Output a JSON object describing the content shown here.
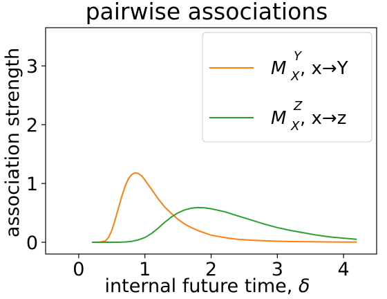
{
  "chart_data": {
    "type": "line",
    "title": "pairwise associations",
    "xlabel": "internal future time, ",
    "xlabel_symbol": "δ",
    "ylabel": "association strength",
    "xlim": [
      -0.5,
      4.5
    ],
    "ylim": [
      -0.2,
      3.65
    ],
    "xticks": [
      0,
      1,
      2,
      3,
      4
    ],
    "yticks": [
      0,
      1,
      2,
      3
    ],
    "grid": false,
    "legend_position": "top-right",
    "series": [
      {
        "name_main": "M",
        "name_sup": "Y",
        "name_sub": "X",
        "name_suffix": ", x→Y",
        "color": "#ff7f0e",
        "x": [
          0.2,
          0.3,
          0.4,
          0.45,
          0.5,
          0.55,
          0.6,
          0.65,
          0.7,
          0.75,
          0.8,
          0.85,
          0.9,
          0.95,
          1.0,
          1.05,
          1.1,
          1.15,
          1.2,
          1.25,
          1.3,
          1.4,
          1.5,
          1.6,
          1.7,
          1.8,
          1.9,
          2.0,
          2.2,
          2.4,
          2.6,
          2.8,
          3.0,
          3.2,
          3.5,
          3.8,
          4.2
        ],
        "y": [
          0.0,
          0.0,
          0.02,
          0.08,
          0.2,
          0.38,
          0.58,
          0.78,
          0.95,
          1.08,
          1.15,
          1.18,
          1.17,
          1.13,
          1.06,
          0.98,
          0.9,
          0.82,
          0.74,
          0.67,
          0.6,
          0.49,
          0.39,
          0.31,
          0.25,
          0.2,
          0.16,
          0.12,
          0.08,
          0.05,
          0.035,
          0.025,
          0.018,
          0.012,
          0.008,
          0.005,
          0.003
        ]
      },
      {
        "name_main": "M",
        "name_sup": "Z",
        "name_sub": "X",
        "name_suffix": ", x→z",
        "color": "#2ca02c",
        "x": [
          0.2,
          0.4,
          0.6,
          0.7,
          0.8,
          0.9,
          1.0,
          1.1,
          1.2,
          1.3,
          1.4,
          1.5,
          1.6,
          1.7,
          1.8,
          1.9,
          2.0,
          2.2,
          2.4,
          2.6,
          2.8,
          3.0,
          3.2,
          3.4,
          3.6,
          3.8,
          4.0,
          4.2
        ],
        "y": [
          0.0,
          0.0,
          0.0,
          0.005,
          0.015,
          0.04,
          0.08,
          0.15,
          0.24,
          0.34,
          0.43,
          0.5,
          0.55,
          0.58,
          0.59,
          0.585,
          0.57,
          0.52,
          0.45,
          0.38,
          0.31,
          0.25,
          0.2,
          0.16,
          0.12,
          0.09,
          0.07,
          0.05
        ]
      }
    ]
  }
}
